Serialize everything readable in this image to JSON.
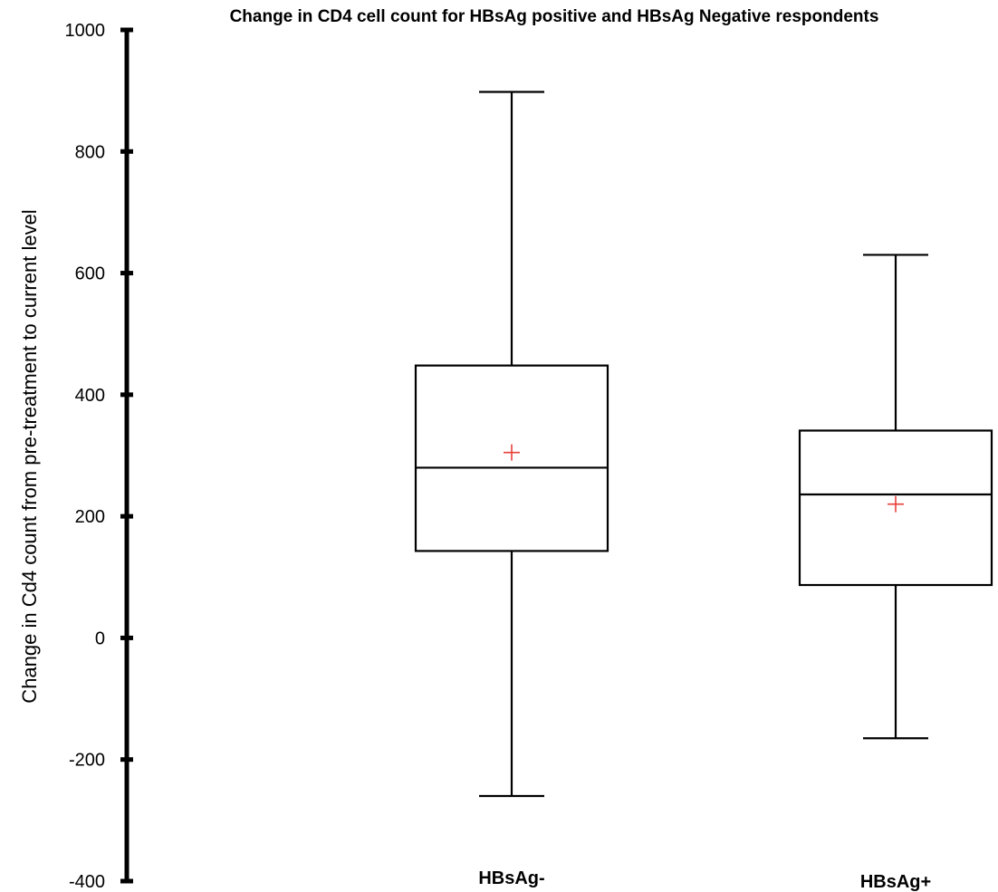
{
  "chart_data": {
    "type": "box",
    "title": "Change in CD4 cell count for HBsAg positive and HBsAg Negative respondents",
    "xlabel": "",
    "ylabel": "Change in Cd4 count from pre-treatment to current level",
    "ylim": [
      -400,
      1000
    ],
    "yticks": [
      "1000",
      "800",
      "600",
      "400",
      "200",
      "0",
      "-200",
      "-400"
    ],
    "ytick_values": [
      1000,
      800,
      600,
      400,
      200,
      0,
      -200,
      -400
    ],
    "grid": false,
    "legend": "none",
    "categories": [
      "HBsAg-",
      "HBsAg+"
    ],
    "boxes": [
      {
        "category": "HBsAg-",
        "min": -260,
        "q1": 143,
        "median": 280,
        "q3": 448,
        "max": 898,
        "mean": 305
      },
      {
        "category": "HBsAg+",
        "min": -165,
        "q1": 87,
        "median": 236,
        "q3": 341,
        "max": 630,
        "mean": 220
      }
    ],
    "colors": {
      "box_stroke": "#000000",
      "mean_marker": "#e8403a",
      "axis": "#000000"
    },
    "mean_marker_icon": "plus-marker"
  }
}
